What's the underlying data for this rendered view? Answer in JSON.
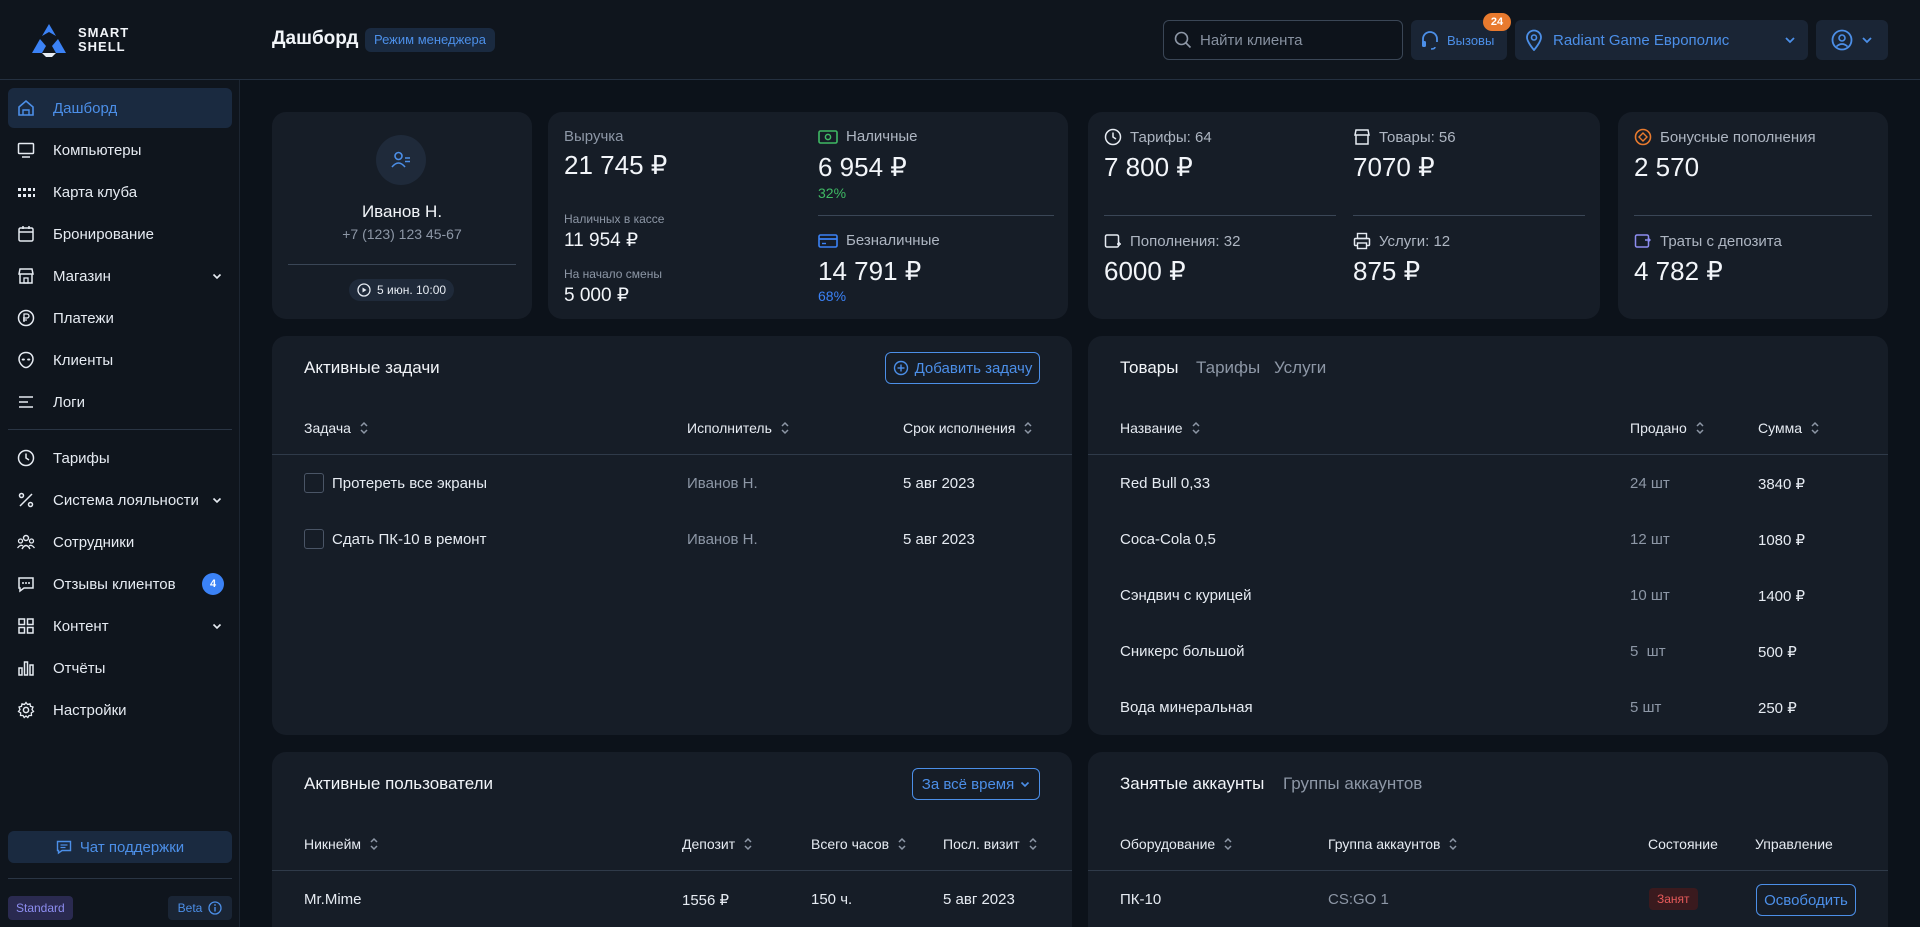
{
  "header": {
    "logo_line1": "SMART",
    "logo_line2": "SHELL",
    "title": "Дашборд",
    "mode_badge": "Режим менеджера",
    "search_placeholder": "Найти клиента",
    "calls_label": "Вызовы",
    "calls_count": "24",
    "club_name": "Radiant Game Европолис"
  },
  "sidebar": {
    "items": [
      {
        "label": "Дашборд"
      },
      {
        "label": "Компьютеры"
      },
      {
        "label": "Карта клуба"
      },
      {
        "label": "Бронирование"
      },
      {
        "label": "Магазин"
      },
      {
        "label": "Платежи"
      },
      {
        "label": "Клиенты"
      },
      {
        "label": "Логи"
      },
      {
        "label": "Тарифы"
      },
      {
        "label": "Система лояльности"
      },
      {
        "label": "Сотрудники"
      },
      {
        "label": "Отзывы клиентов",
        "badge": "4"
      },
      {
        "label": "Контент"
      },
      {
        "label": "Отчёты"
      },
      {
        "label": "Настройки"
      }
    ],
    "support_label": "Чат поддержки",
    "plan": "Standard",
    "beta": "Beta"
  },
  "manager": {
    "name": "Иванов Н.",
    "phone": "+7 (123) 123 45-67",
    "shift_start": "5 июн. 10:00"
  },
  "revenue": {
    "label": "Выручка",
    "value": "21 745 ₽",
    "cash_in_register_label": "Наличных в кассе",
    "cash_in_register": "11 954 ₽",
    "shift_start_label": "На начало смены",
    "shift_start_value": "5 000 ₽",
    "cash_label": "Наличные",
    "cash_value": "6 954 ₽",
    "cash_pct": "32%",
    "cashless_label": "Безналичные",
    "cashless_value": "14 791 ₽",
    "cashless_pct": "68%"
  },
  "sales": {
    "tariffs_label": "Тарифы: 64",
    "tariffs_value": "7 800 ₽",
    "goods_label": "Товары: 56",
    "goods_value": "7070 ₽",
    "topups_label": "Пополнения: 32",
    "topups_value": "6000 ₽",
    "services_label": "Услуги: 12",
    "services_value": "875 ₽"
  },
  "bonus": {
    "bonus_label": "Бонусные пополнения",
    "bonus_value": "2 570",
    "deposit_label": "Траты с депозита",
    "deposit_value": "4 782 ₽"
  },
  "tasks": {
    "title": "Активные задачи",
    "add_button": "Добавить задачу",
    "columns": [
      "Задача",
      "Исполнитель",
      "Срок исполнения"
    ],
    "rows": [
      {
        "task": "Протереть все экраны",
        "assignee": "Иванов Н.",
        "due": "5 авг 2023"
      },
      {
        "task": "Сдать ПК-10 в ремонт",
        "assignee": "Иванов Н.",
        "due": "5 авг 2023"
      }
    ]
  },
  "products": {
    "tabs": [
      "Товары",
      "Тарифы",
      "Услуги"
    ],
    "columns": [
      "Название",
      "Продано",
      "Сумма"
    ],
    "rows": [
      {
        "name": "Red Bull 0,33",
        "sold": "24 шт",
        "sum": "3840 ₽"
      },
      {
        "name": "Coca-Cola 0,5",
        "sold": "12 шт",
        "sum": "1080 ₽"
      },
      {
        "name": "Сэндвич с курицей",
        "sold": "10 шт",
        "sum": "1400 ₽"
      },
      {
        "name": "Сникерс большой",
        "sold": "5  шт",
        "sum": "500 ₽"
      },
      {
        "name": "Вода минеральная",
        "sold": "5 шт",
        "sum": "250 ₽"
      }
    ]
  },
  "users": {
    "title": "Активные пользователи",
    "period": "За всё время",
    "columns": [
      "Никнейм",
      "Депозит",
      "Всего часов",
      "Посл. визит"
    ],
    "rows": [
      {
        "nick": "Mr.Mime",
        "deposit": "1556 ₽",
        "hours": "150 ч.",
        "last": "5 авг 2023"
      }
    ]
  },
  "accounts": {
    "tabs": [
      "Занятые аккаунты",
      "Группы аккаунтов"
    ],
    "columns": [
      "Оборудование",
      "Группа аккаунтов",
      "Состояние",
      "Управление"
    ],
    "rows": [
      {
        "device": "ПК-10",
        "group": "CS:GO 1",
        "state": "Занят",
        "action": "Освободить"
      }
    ]
  },
  "colors": {
    "accent": "#4c8fe8",
    "background": "#0c121a",
    "card": "#161d27",
    "success": "#3fb964",
    "warning": "#e87a2e",
    "danger": "#e65a5a"
  }
}
